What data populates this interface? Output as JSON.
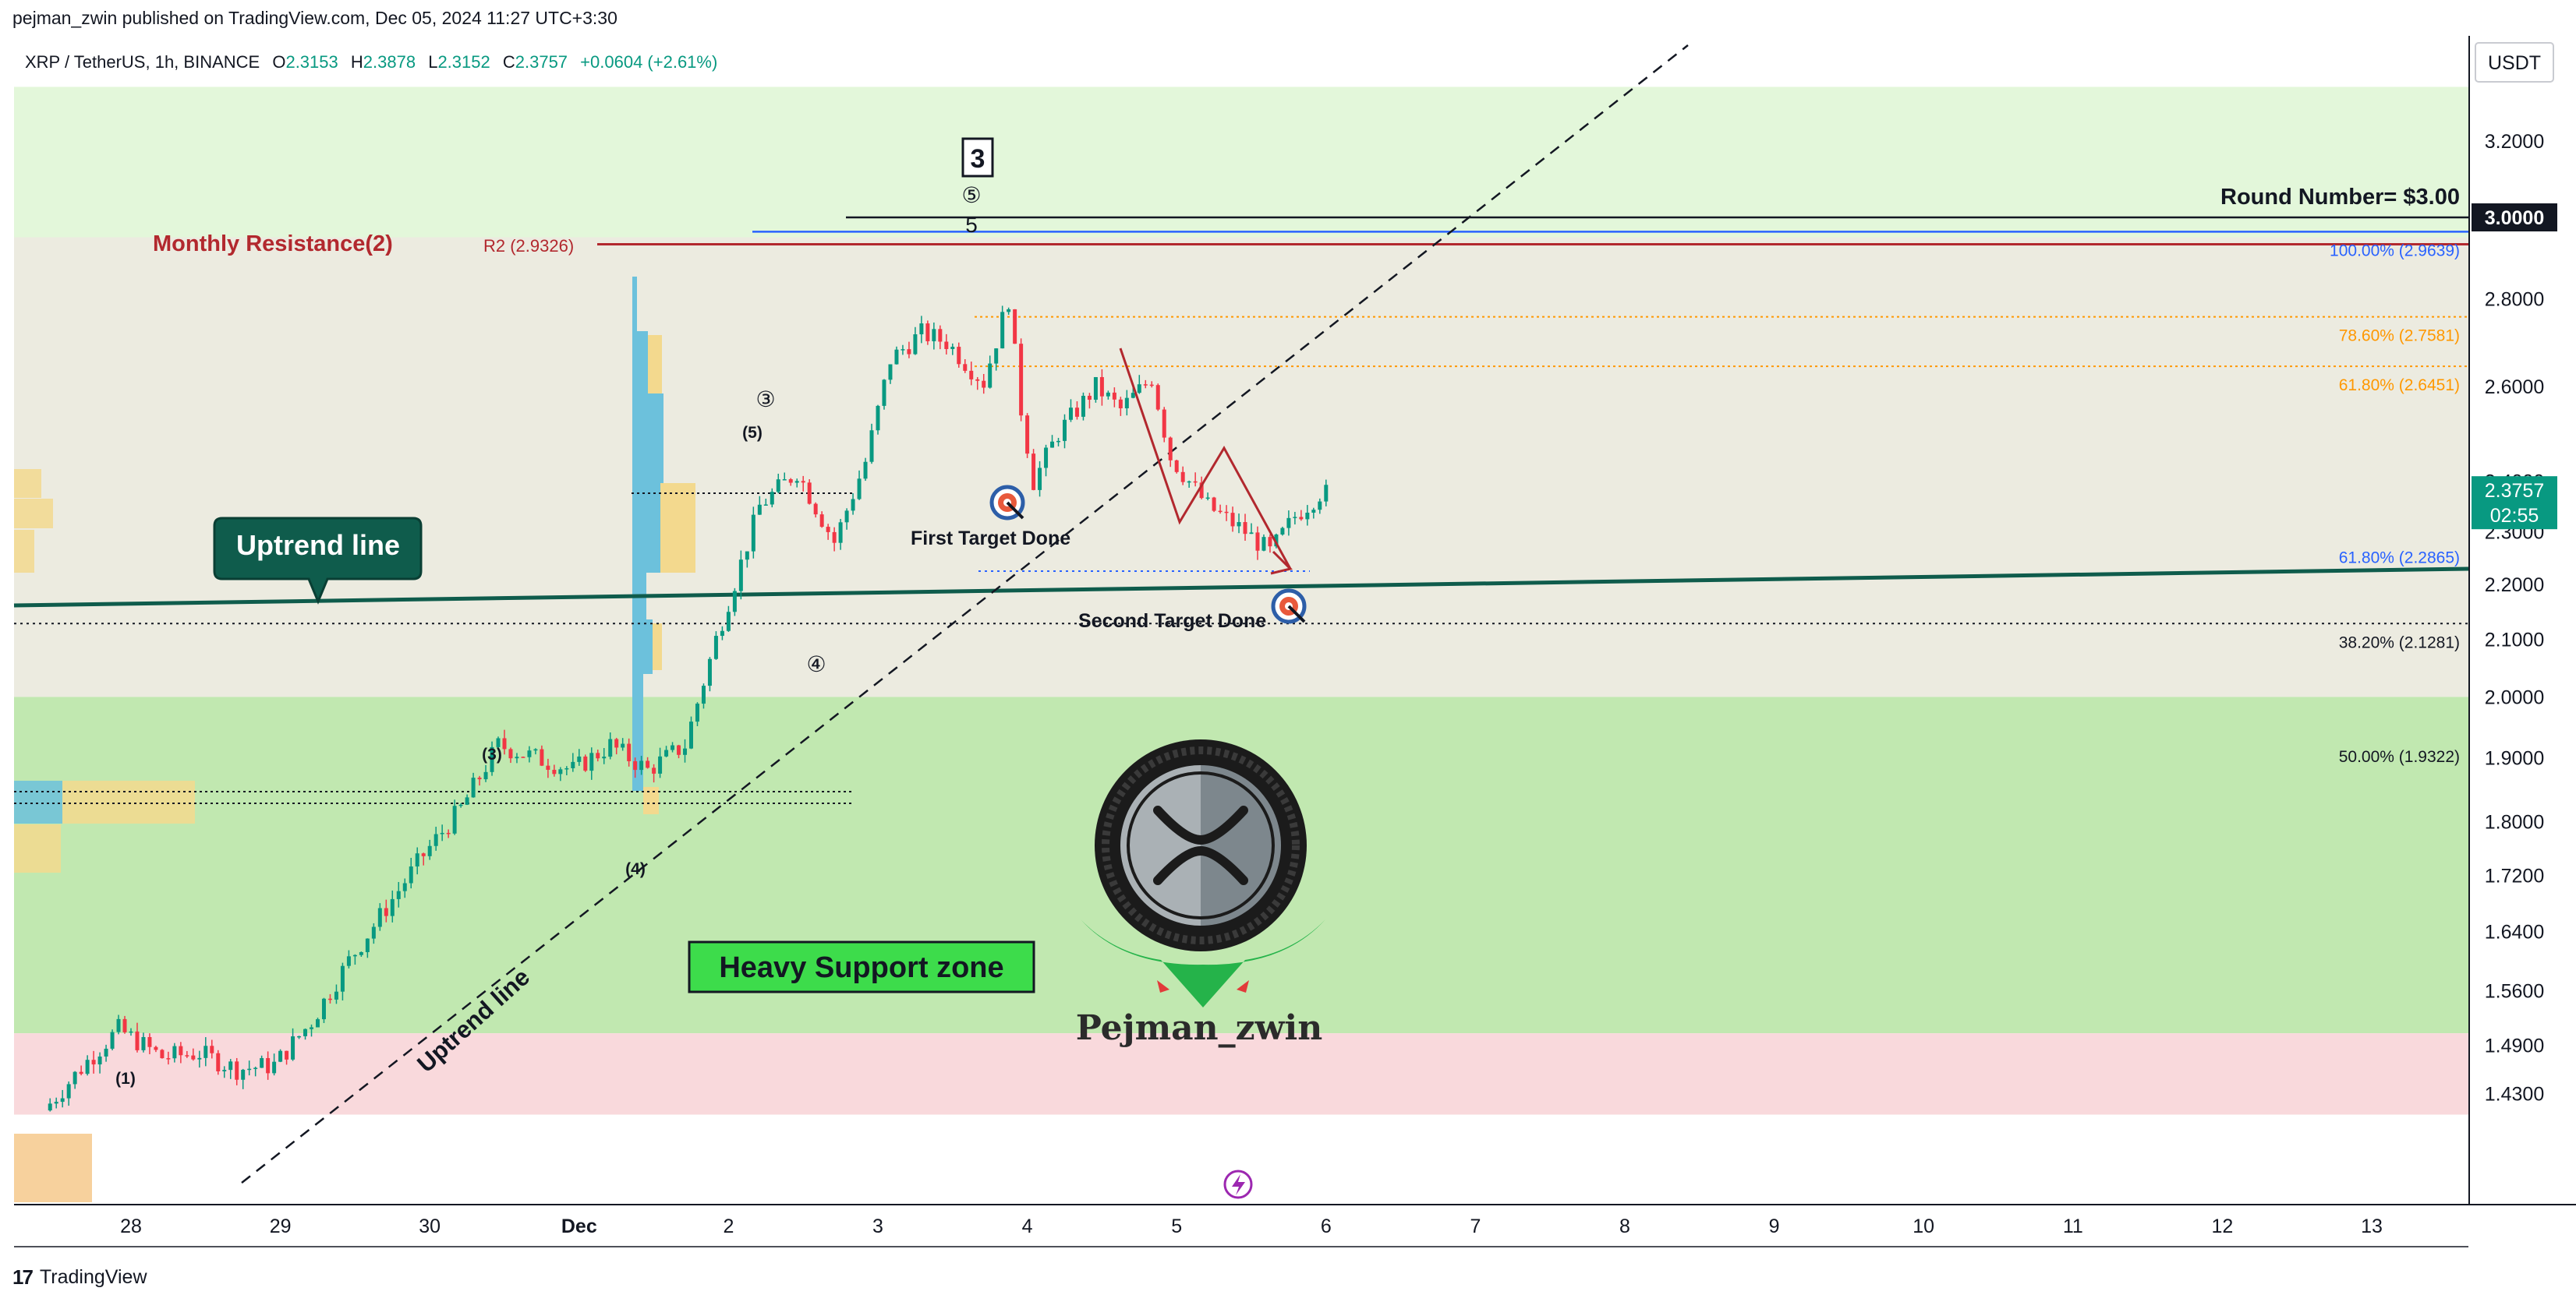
{
  "header": {
    "published": "pejman_zwin published on TradingView.com, Dec 05, 2024 11:27 UTC+3:30"
  },
  "footer": {
    "brand": "TradingView",
    "logo": "tradingview-logo-icon"
  },
  "symbol": {
    "name": "XRP / TetherUS, 1h, BINANCE",
    "o_label": "O",
    "o": "2.3153",
    "h_label": "H",
    "h": "2.3878",
    "l_label": "L",
    "l": "2.3152",
    "c_label": "C",
    "c": "2.3757",
    "change": "+0.0604 (+2.61%)"
  },
  "currency": "USDT",
  "price_badge": {
    "price": "2.3757",
    "countdown": "02:55"
  },
  "round_badge": "3.0000",
  "colors": {
    "up": "#089981",
    "down": "#f23645",
    "resistance": "#b2282e",
    "fib_blue": "#2962ff",
    "fib_orange": "#ff9800",
    "trend": "#0f5c4c",
    "support_zone": "#c1e8b0",
    "pink_zone": "#f9d9dc",
    "top_zone": "#e3f7da",
    "mid_zone": "#ecebe0"
  },
  "annotations": {
    "monthly_resistance": "Monthly Resistance(2)",
    "r2": "R2 (2.9326)",
    "round_number": "Round Number= $3.00",
    "uptrend_box": "Uptrend line",
    "uptrend_diag": "Uptrend line",
    "heavy_support": "Heavy Support zone",
    "first_target": "First Target Done",
    "second_target": "Second Target Done",
    "watermark": "Pejman_zwin",
    "wave_box": "3",
    "wave_5_small": "5",
    "wave_c5": "⑤",
    "wave_c3": "③",
    "wave_c4": "④",
    "wave_p5": "(5)",
    "wave_p3": "(3)",
    "wave_p4": "(4)",
    "wave_p1": "(1)"
  },
  "fib_levels": [
    {
      "label": "100.00% (2.9639)",
      "price": 2.9639,
      "color": "#2962ff"
    },
    {
      "label": "78.60% (2.7581)",
      "price": 2.7581,
      "color": "#ff9800"
    },
    {
      "label": "61.80% (2.6451)",
      "price": 2.6451,
      "color": "#ff9800"
    },
    {
      "label": "61.80% (2.2865)",
      "price": 2.2865,
      "color": "#2962ff"
    },
    {
      "label": "38.20% (2.1281)",
      "price": 2.1281,
      "color": "#131722"
    },
    {
      "label": "50.00% (1.9322)",
      "price": 1.9322,
      "color": "#131722"
    }
  ],
  "chart_data": {
    "type": "candlestick",
    "title": "XRP / TetherUS, 1h, BINANCE",
    "y_scale": "log",
    "x_tick_labels": [
      "28",
      "29",
      "30",
      "Dec",
      "2",
      "3",
      "4",
      "5",
      "6",
      "7",
      "8",
      "9",
      "10",
      "11",
      "12",
      "13"
    ],
    "y_tick_labels": [
      "3.2000",
      "2.8000",
      "2.6000",
      "2.4000",
      "2.3000",
      "2.2000",
      "2.1000",
      "2.0000",
      "1.9000",
      "1.8000",
      "1.7200",
      "1.6400",
      "1.5600",
      "1.4900",
      "1.4300"
    ],
    "ylim": [
      1.405,
      3.35
    ],
    "x_range_days": [
      "Nov 27",
      "Dec 14"
    ],
    "last_close": 2.3757,
    "zones": [
      {
        "name": "pink zone",
        "from": 1.405,
        "to": 1.505
      },
      {
        "name": "heavy support zone",
        "from": 1.505,
        "to": 2.0
      },
      {
        "name": "range zone",
        "from": 2.0,
        "to": 2.95
      },
      {
        "name": "upper zone",
        "from": 2.95,
        "to": 3.35
      }
    ],
    "price_path": [
      {
        "t": "Nov 27 11:00",
        "p": 1.41
      },
      {
        "t": "Nov 27 18:00",
        "p": 1.47
      },
      {
        "t": "Nov 27 23:00",
        "p": 1.51
      },
      {
        "t": "Nov 28 06:00",
        "p": 1.475
      },
      {
        "t": "Nov 28 12:00",
        "p": 1.48
      },
      {
        "t": "Nov 28 18:00",
        "p": 1.46
      },
      {
        "t": "Nov 29 00:00",
        "p": 1.465
      },
      {
        "t": "Nov 29 06:00",
        "p": 1.52
      },
      {
        "t": "Nov 29 12:00",
        "p": 1.6
      },
      {
        "t": "Nov 30 00:00",
        "p": 1.75
      },
      {
        "t": "Nov 30 06:00",
        "p": 1.82
      },
      {
        "t": "Nov 30 12:00",
        "p": 1.92
      },
      {
        "t": "Dec 01 00:00",
        "p": 1.88
      },
      {
        "t": "Dec 01 06:00",
        "p": 1.92
      },
      {
        "t": "Dec 01 12:00",
        "p": 1.88
      },
      {
        "t": "Dec 01 18:00",
        "p": 1.92
      },
      {
        "t": "Dec 01 23:00",
        "p": 2.1
      },
      {
        "t": "Dec 02 06:00",
        "p": 2.35
      },
      {
        "t": "Dec 02 12:00",
        "p": 2.42
      },
      {
        "t": "Dec 02 18:00",
        "p": 2.28
      },
      {
        "t": "Dec 02 23:00",
        "p": 2.44
      },
      {
        "t": "Dec 03 03:00",
        "p": 2.66
      },
      {
        "t": "Dec 03 08:00",
        "p": 2.72
      },
      {
        "t": "Dec 03 12:00",
        "p": 2.7
      },
      {
        "t": "Dec 03 18:00",
        "p": 2.61
      },
      {
        "t": "Dec 03 22:00",
        "p": 2.8
      },
      {
        "t": "Dec 04 00:00",
        "p": 2.55
      },
      {
        "t": "Dec 04 02:00",
        "p": 2.4
      },
      {
        "t": "Dec 04 06:00",
        "p": 2.5
      },
      {
        "t": "Dec 04 12:00",
        "p": 2.6
      },
      {
        "t": "Dec 04 16:00",
        "p": 2.55
      },
      {
        "t": "Dec 04 21:00",
        "p": 2.62
      },
      {
        "t": "Dec 05 00:00",
        "p": 2.45
      },
      {
        "t": "Dec 05 06:00",
        "p": 2.35
      },
      {
        "t": "Dec 05 12:00",
        "p": 2.3
      },
      {
        "t": "Dec 05 16:00",
        "p": 2.26
      },
      {
        "t": "Dec 05 20:00",
        "p": 2.33
      },
      {
        "t": "Dec 06 00:00",
        "p": 2.3757
      }
    ]
  }
}
